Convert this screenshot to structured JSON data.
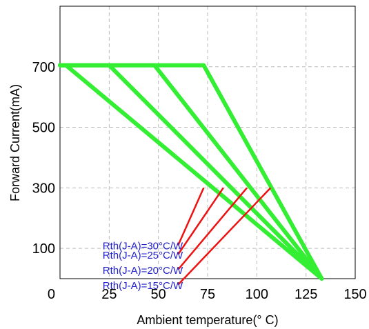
{
  "chart_data": {
    "type": "line",
    "title": "",
    "xlabel": "Ambient temperature(° C)",
    "ylabel": "Forward Current(mA)",
    "xlim": [
      0,
      150
    ],
    "ylim": [
      0,
      900
    ],
    "x_ticks": [
      "25",
      "50",
      "75",
      "100",
      "125",
      "150"
    ],
    "y_ticks": [
      "0",
      "100",
      "300",
      "500",
      "700"
    ],
    "y_tick_values": [
      0,
      100,
      300,
      500,
      700
    ],
    "grid": true,
    "series_color": "#33ee33",
    "annotation_color": "#ee1111",
    "label_color": "#2222cc",
    "series": [
      {
        "points": [
          [
            0,
            705
          ],
          [
            3,
            705
          ],
          [
            133,
            0
          ]
        ]
      },
      {
        "points": [
          [
            0,
            705
          ],
          [
            25,
            705
          ],
          [
            133,
            0
          ]
        ]
      },
      {
        "points": [
          [
            0,
            705
          ],
          [
            48,
            705
          ],
          [
            133,
            0
          ]
        ]
      },
      {
        "points": [
          [
            0,
            705
          ],
          [
            73,
            705
          ],
          [
            133,
            0
          ]
        ]
      }
    ],
    "annotations": [
      {
        "text": "Rth(J-A)=30°C/W",
        "from": [
          60,
          110
        ],
        "to": [
          73,
          300
        ]
      },
      {
        "text": "Rth(J-A)=25°C/W",
        "from": [
          60,
          80
        ],
        "to": [
          83,
          300
        ]
      },
      {
        "text": "Rth(J-A)=20°C/W",
        "from": [
          60,
          30
        ],
        "to": [
          95,
          300
        ]
      },
      {
        "text": "Rth(J-A)=15°C/W",
        "from": [
          60,
          -20
        ],
        "to": [
          107,
          300
        ]
      }
    ]
  }
}
